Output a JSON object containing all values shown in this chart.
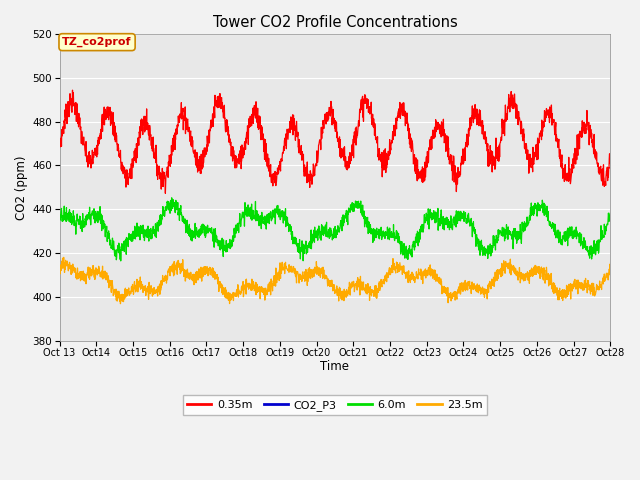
{
  "title": "Tower CO2 Profile Concentrations",
  "ylabel": "CO2 (ppm)",
  "xlabel": "Time",
  "annotation": "TZ_co2prof",
  "ylim": [
    380,
    520
  ],
  "yticks": [
    380,
    400,
    420,
    440,
    460,
    480,
    500,
    520
  ],
  "xtick_labels": [
    "Oct 13",
    "Oct 14",
    "Oct 15",
    "Oct 16",
    "Oct 17",
    "Oct 18",
    "Oct 19",
    "Oct 20",
    "Oct 21",
    "Oct 22",
    "Oct 23",
    "Oct 24",
    "Oct 25",
    "Oct 26",
    "Oct 27",
    "Oct 28"
  ],
  "legend_labels": [
    "0.35m",
    "CO2_P3",
    "6.0m",
    "23.5m"
  ],
  "legend_colors": [
    "#ff0000",
    "#0000cd",
    "#00dd00",
    "#ffaa00"
  ],
  "plot_bg_color": "#e8e8e8",
  "fig_bg_color": "#f2f2f2",
  "n_points": 2000,
  "seed": 7
}
